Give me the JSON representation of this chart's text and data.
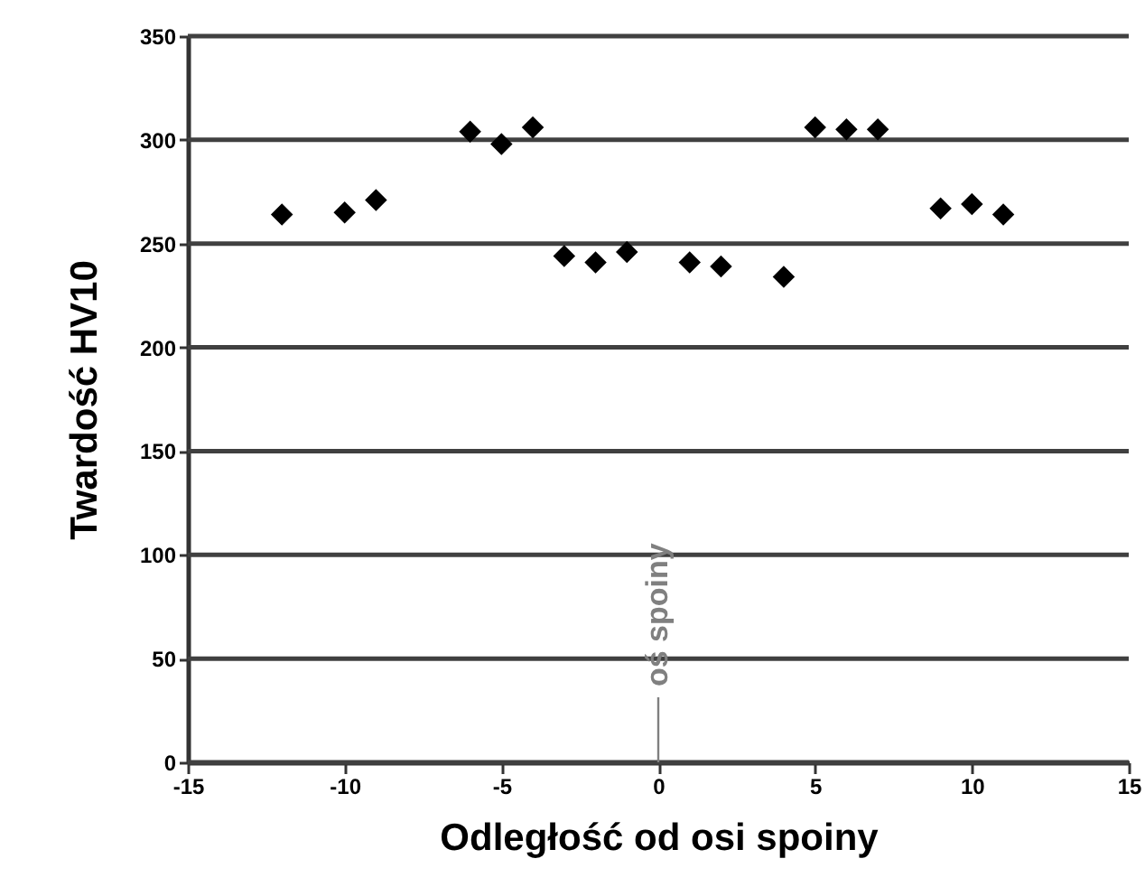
{
  "chart_data": {
    "type": "scatter",
    "xlabel": "Odległość od osi spoiny",
    "ylabel": "Twardość HV10",
    "x": [
      -12,
      -10,
      -9,
      -6,
      -5,
      -4,
      -3,
      -2,
      -1,
      1,
      2,
      4,
      5,
      6,
      7,
      9,
      10,
      11
    ],
    "series": [
      {
        "color": "#000000",
        "values": [
          264,
          265,
          271,
          304,
          298,
          306,
          244,
          241,
          246,
          241,
          239,
          234,
          306,
          305,
          305,
          267,
          269,
          264
        ]
      }
    ],
    "xlim": [
      -15,
      15
    ],
    "xticks": [
      -15,
      -10,
      -5,
      0,
      5,
      10,
      15
    ],
    "ylim": [
      0,
      350
    ],
    "yticks": [
      0,
      50,
      100,
      150,
      200,
      250,
      300,
      350
    ],
    "grid": "y",
    "marker": "diamond",
    "ref_lines": [
      {
        "axis": "x",
        "value": 0,
        "label": "oś spoiny",
        "color": "#808080"
      }
    ]
  }
}
